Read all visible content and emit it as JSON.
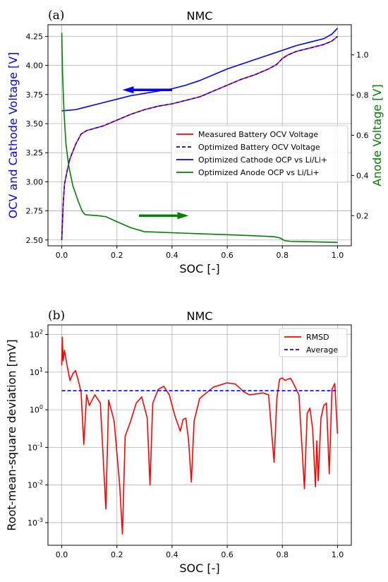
{
  "chart_data": [
    {
      "panel_label": "(a)",
      "type": "line",
      "title": "NMC",
      "xlabel": "SOC [-]",
      "ylabel": "OCV and Cathode Voltage [V]",
      "ylabel_right": "Anode Voltage [V]",
      "xlim": [
        -0.05,
        1.05
      ],
      "ylim": [
        2.45,
        4.35
      ],
      "ylim_right": [
        0.05,
        1.15
      ],
      "xticks": [
        0.0,
        0.2,
        0.4,
        0.6,
        0.8,
        1.0
      ],
      "xtick_labels": [
        "0.0",
        "0.2",
        "0.4",
        "0.6",
        "0.8",
        "1.0"
      ],
      "yticks": [
        2.5,
        2.75,
        3.0,
        3.25,
        3.5,
        3.75,
        4.0,
        4.25
      ],
      "ytick_labels": [
        "2.50",
        "2.75",
        "3.00",
        "3.25",
        "3.50",
        "3.75",
        "4.00",
        "4.25"
      ],
      "yticks_right": [
        0.2,
        0.4,
        0.6,
        0.8,
        1.0
      ],
      "ytick_labels_right": [
        "0.2",
        "0.4",
        "0.6",
        "0.8",
        "1.0"
      ],
      "grid": true,
      "legend_position": "center-right",
      "colors": {
        "left_axis": "#0000ff",
        "right_axis": "#008000"
      },
      "series": [
        {
          "name": "Measured Battery OCV Voltage",
          "axis": "left",
          "color": "#ff0000",
          "style": "solid",
          "x": [
            0.0,
            0.005,
            0.01,
            0.02,
            0.03,
            0.05,
            0.07,
            0.09,
            0.12,
            0.15,
            0.2,
            0.25,
            0.3,
            0.35,
            0.4,
            0.45,
            0.5,
            0.55,
            0.6,
            0.65,
            0.7,
            0.75,
            0.78,
            0.8,
            0.82,
            0.85,
            0.9,
            0.95,
            0.98,
            1.0
          ],
          "y": [
            2.5,
            2.8,
            2.98,
            3.1,
            3.2,
            3.32,
            3.41,
            3.44,
            3.46,
            3.48,
            3.53,
            3.58,
            3.62,
            3.65,
            3.67,
            3.7,
            3.73,
            3.78,
            3.83,
            3.88,
            3.92,
            3.97,
            4.01,
            4.06,
            4.09,
            4.12,
            4.15,
            4.18,
            4.21,
            4.25
          ]
        },
        {
          "name": "Optimized Battery OCV Voltage",
          "axis": "left",
          "color": "#0000ff",
          "style": "dashed",
          "x": [
            0.0,
            0.005,
            0.01,
            0.02,
            0.03,
            0.05,
            0.07,
            0.09,
            0.12,
            0.15,
            0.2,
            0.25,
            0.3,
            0.35,
            0.4,
            0.45,
            0.5,
            0.55,
            0.6,
            0.65,
            0.7,
            0.75,
            0.78,
            0.8,
            0.82,
            0.85,
            0.9,
            0.95,
            0.98,
            1.0
          ],
          "y": [
            2.5,
            2.8,
            2.98,
            3.1,
            3.2,
            3.32,
            3.41,
            3.44,
            3.46,
            3.48,
            3.53,
            3.58,
            3.62,
            3.65,
            3.67,
            3.7,
            3.73,
            3.78,
            3.83,
            3.88,
            3.92,
            3.97,
            4.01,
            4.06,
            4.09,
            4.12,
            4.15,
            4.18,
            4.21,
            4.25
          ]
        },
        {
          "name": "Optimized Cathode OCP vs Li/Li+",
          "axis": "left",
          "color": "#0000ff",
          "style": "solid",
          "x": [
            0.0,
            0.05,
            0.1,
            0.15,
            0.2,
            0.25,
            0.3,
            0.35,
            0.4,
            0.45,
            0.5,
            0.55,
            0.6,
            0.65,
            0.7,
            0.75,
            0.8,
            0.85,
            0.9,
            0.95,
            0.98,
            1.0
          ],
          "y": [
            3.61,
            3.62,
            3.65,
            3.68,
            3.71,
            3.74,
            3.76,
            3.78,
            3.8,
            3.83,
            3.87,
            3.92,
            3.97,
            4.01,
            4.05,
            4.09,
            4.13,
            4.17,
            4.2,
            4.23,
            4.27,
            4.32
          ]
        },
        {
          "name": "Optimized Anode OCP vs Li/Li+",
          "axis": "right",
          "color": "#008000",
          "style": "solid",
          "x": [
            0.0,
            0.003,
            0.008,
            0.015,
            0.025,
            0.04,
            0.06,
            0.075,
            0.085,
            0.1,
            0.13,
            0.16,
            0.2,
            0.25,
            0.3,
            0.35,
            0.4,
            0.5,
            0.6,
            0.7,
            0.77,
            0.79,
            0.81,
            0.83,
            0.9,
            1.0
          ],
          "y": [
            1.11,
            0.9,
            0.72,
            0.56,
            0.45,
            0.35,
            0.27,
            0.22,
            0.205,
            0.203,
            0.2,
            0.195,
            0.17,
            0.14,
            0.12,
            0.118,
            0.115,
            0.11,
            0.105,
            0.1,
            0.095,
            0.09,
            0.075,
            0.072,
            0.07,
            0.067
          ]
        }
      ],
      "annotations": [
        {
          "type": "arrow",
          "color": "#0000ff",
          "direction": "left",
          "from": [
            0.4,
            3.79
          ],
          "to": [
            0.22,
            3.79
          ]
        },
        {
          "type": "arrow",
          "color": "#008000",
          "direction": "right",
          "from": [
            0.28,
            0.2
          ],
          "to": [
            0.46,
            0.2
          ]
        }
      ]
    },
    {
      "panel_label": "(b)",
      "type": "line",
      "title": "NMC",
      "xlabel": "SOC [-]",
      "ylabel": "Root-mean-square deviation [mV]",
      "xlim": [
        -0.05,
        1.05
      ],
      "yscale": "log",
      "ylim": [
        0.00025,
        180
      ],
      "xticks": [
        0.0,
        0.2,
        0.4,
        0.6,
        0.8,
        1.0
      ],
      "xtick_labels": [
        "0.0",
        "0.2",
        "0.4",
        "0.6",
        "0.8",
        "1.0"
      ],
      "yticks": [
        0.001,
        0.01,
        0.1,
        1,
        10,
        100
      ],
      "ytick_labels": [
        "10",
        "10",
        "10",
        "10",
        "10",
        "10"
      ],
      "ytick_exponents": [
        "-3",
        "-2",
        "-1",
        "0",
        "1",
        "2"
      ],
      "grid": true,
      "legend_position": "top-right",
      "series": [
        {
          "name": "RMSD",
          "color": "#ff0000",
          "style": "solid",
          "x": [
            0.0,
            0.002,
            0.005,
            0.01,
            0.02,
            0.03,
            0.04,
            0.05,
            0.06,
            0.07,
            0.08,
            0.09,
            0.1,
            0.12,
            0.14,
            0.16,
            0.17,
            0.19,
            0.21,
            0.22,
            0.23,
            0.25,
            0.27,
            0.29,
            0.31,
            0.32,
            0.33,
            0.35,
            0.37,
            0.39,
            0.41,
            0.43,
            0.44,
            0.45,
            0.46,
            0.47,
            0.48,
            0.5,
            0.55,
            0.6,
            0.63,
            0.66,
            0.68,
            0.7,
            0.73,
            0.75,
            0.77,
            0.78,
            0.79,
            0.8,
            0.81,
            0.82,
            0.83,
            0.84,
            0.86,
            0.88,
            0.89,
            0.9,
            0.91,
            0.92,
            0.925,
            0.93,
            0.94,
            0.95,
            0.96,
            0.97,
            0.98,
            0.99,
            1.0
          ],
          "y": [
            15,
            85,
            20,
            38,
            14,
            6,
            9,
            11,
            6,
            3,
            0.12,
            2.5,
            1.3,
            2.5,
            1.5,
            0.0023,
            1.8,
            0.5,
            0.01,
            0.0005,
            0.2,
            0.5,
            1.5,
            2.2,
            0.6,
            0.01,
            1.5,
            3.5,
            4.2,
            2.5,
            0.7,
            0.27,
            0.55,
            0.6,
            0.15,
            0.012,
            0.5,
            2,
            4,
            5.2,
            4.8,
            3,
            2.5,
            2.6,
            2.8,
            2.5,
            0.04,
            2,
            6.5,
            7,
            6,
            6.5,
            6.8,
            5,
            2.5,
            0.008,
            0.8,
            1.1,
            0.3,
            0.009,
            0.15,
            0.013,
            0.6,
            1.3,
            1.5,
            0.02,
            3.5,
            5,
            0.23
          ]
        },
        {
          "name": "Average",
          "color": "#0000ff",
          "style": "dashed",
          "x": [
            0.0,
            1.0
          ],
          "y": [
            3.2,
            3.2
          ]
        }
      ]
    }
  ]
}
